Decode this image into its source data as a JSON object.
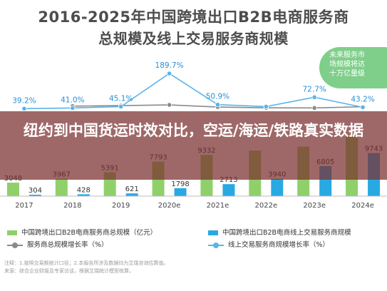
{
  "chart_data": {
    "type": "bar",
    "title": "2016-2025年中国跨境出口B2B电商服务商",
    "subtitle": "总规模及线上交易服务商规模",
    "categories": [
      "2017",
      "2018",
      "2019",
      "2020e",
      "2021e",
      "2022e",
      "2023e",
      "2024e"
    ],
    "category_labels": [
      "2017",
      "2018",
      "2019",
      "2020e",
      "2021e",
      "2022e",
      "2023e",
      "2024e"
    ],
    "series": [
      {
        "name": "中国跨境出口B2B电商服务商总规模（亿元）",
        "kind": "bar",
        "color": "#8fd06a",
        "values": [
          3048,
          3967,
          5391,
          7793,
          9332,
          10300,
          11200,
          13800
        ],
        "labels": [
          "3048",
          "3967",
          "5391",
          "7793",
          "9332",
          "",
          "",
          ""
        ]
      },
      {
        "name": "中国跨境出口B2B电商线上交易服务商规模",
        "kind": "bar",
        "color": "#29a9e1",
        "values": [
          304,
          428,
          621,
          1798,
          2713,
          3940,
          6805,
          9743
        ],
        "labels": [
          "304",
          "428",
          "621",
          "1798",
          "2713",
          "3940",
          "6805",
          "9743"
        ]
      },
      {
        "name": "服务商总规模增长率（%）",
        "kind": "line",
        "color": "#8a8a8a",
        "values": [
          null,
          30.2,
          35.9,
          44.6,
          19.8,
          10.4,
          8.7,
          23.2
        ],
        "labels": [
          "",
          "",
          "",
          "",
          "",
          "",
          "",
          ""
        ]
      },
      {
        "name": "线上交易服务商规模增长率（%）",
        "kind": "line",
        "color": "#5ab4e8",
        "values": [
          39.2,
          41.0,
          45.1,
          189.7,
          50.9,
          45.2,
          72.7,
          43.2
        ],
        "labels": [
          "39.2%",
          "41.0%",
          "45.1%",
          "189.7%",
          "50.9%",
          "",
          "72.7%",
          "43.2%"
        ]
      }
    ],
    "grid": false,
    "legend_position": "bottom"
  },
  "header": {
    "title": "2016-2025年中国跨境出口B2B电商服务商",
    "subtitle": "总规模及线上交易服务商规模"
  },
  "badge": {
    "lines": [
      "未来服务市",
      "场规模将达",
      "十万亿量级"
    ]
  },
  "overlay": {
    "title": "纽约到中国货运时效对比，空运/海运/铁路真实数据",
    "color": "#7a2e2e"
  },
  "legend": {
    "item1": "中国跨境出口B2B电商服务商总规模（亿元）",
    "item2": "中国跨境出口B2B电商线上交易服务商规模",
    "item3": "服务商总规模增长率（%）",
    "item4": "线上交易服务商规模增长率（%）"
  },
  "footnote": {
    "line1": "注释：1.按照交易额统计口径；2.本报告所涉及数据均为艾瑞咨询估算值。",
    "line2": "来源：综合企业财报及专家访谈，根据艾瑞统计模型核算。"
  }
}
